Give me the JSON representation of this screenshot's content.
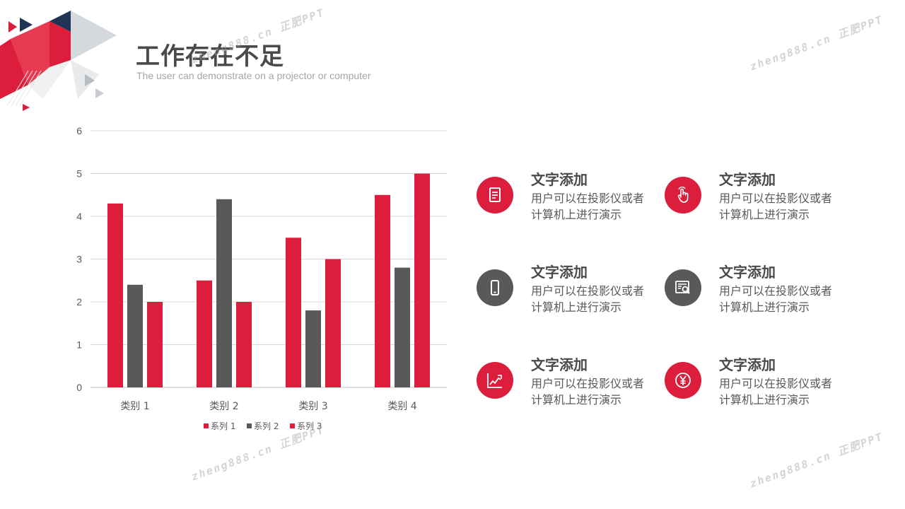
{
  "page": {
    "title": "工作存在不足",
    "subtitle": "The user can demonstrate on a projector or computer"
  },
  "colors": {
    "red": "#dc1e3c",
    "dark": "#595959",
    "navy": "#1f3553",
    "grid": "#d9d9d9"
  },
  "chart_data": {
    "type": "bar",
    "categories": [
      "类别 1",
      "类别 2",
      "类别 3",
      "类别 4"
    ],
    "series": [
      {
        "name": "系列 1",
        "values": [
          4.3,
          2.5,
          3.5,
          4.5
        ],
        "color": "#dc1e3c"
      },
      {
        "name": "系列 2",
        "values": [
          2.4,
          4.4,
          1.8,
          2.8
        ],
        "color": "#595959"
      },
      {
        "name": "系列 3",
        "values": [
          2,
          2,
          3,
          5
        ],
        "color": "#dc1e3c"
      }
    ],
    "yticks": [
      "0",
      "1",
      "2",
      "3",
      "4",
      "5",
      "6"
    ],
    "ylim": [
      0,
      6
    ],
    "grid": true,
    "legend_position": "bottom"
  },
  "cards": [
    {
      "heading": "文字添加",
      "desc": "用户可以在投影仪或者计算机上进行演示",
      "icon": "document-icon",
      "color": "#dc1e3c"
    },
    {
      "heading": "文字添加",
      "desc": "用户可以在投影仪或者计算机上进行演示",
      "icon": "hand-pointer-icon",
      "color": "#dc1e3c"
    },
    {
      "heading": "文字添加",
      "desc": "用户可以在投影仪或者计算机上进行演示",
      "icon": "mobile-phone-icon",
      "color": "#595959"
    },
    {
      "heading": "文字添加",
      "desc": "用户可以在投影仪或者计算机上进行演示",
      "icon": "search-document-icon",
      "color": "#595959"
    },
    {
      "heading": "文字添加",
      "desc": "用户可以在投影仪或者计算机上进行演示",
      "icon": "line-chart-icon",
      "color": "#dc1e3c"
    },
    {
      "heading": "文字添加",
      "desc": "用户可以在投影仪或者计算机上进行演示",
      "icon": "yen-icon",
      "color": "#dc1e3c"
    }
  ],
  "watermarks": [
    "zheng888.cn 正肥PPT"
  ]
}
